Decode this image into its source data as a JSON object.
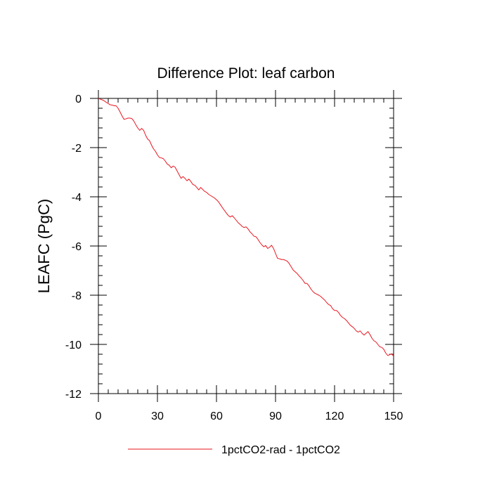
{
  "chart_data": {
    "type": "line",
    "title": "Difference Plot: leaf carbon",
    "xlabel": "",
    "ylabel": "LEAFC  (PgC)",
    "xlim": [
      0,
      150
    ],
    "ylim": [
      -12,
      0
    ],
    "xticks": [
      0,
      30,
      60,
      90,
      120,
      150
    ],
    "yticks": [
      0,
      -2,
      -4,
      -6,
      -8,
      -10,
      -12
    ],
    "x_minor_step": 5,
    "y_minor_step": 0.4,
    "grid": false,
    "legend_position": "bottom-center",
    "series": [
      {
        "name": "1pctCO2-rad - 1pctCO2",
        "color": "#e8141e",
        "x": [
          0,
          1,
          2,
          3,
          4,
          5,
          6,
          7,
          8,
          9,
          10,
          11,
          12,
          13,
          14,
          15,
          16,
          17,
          18,
          19,
          20,
          21,
          22,
          23,
          24,
          25,
          26,
          27,
          28,
          29,
          30,
          31,
          32,
          33,
          34,
          35,
          36,
          37,
          38,
          39,
          40,
          41,
          42,
          43,
          44,
          45,
          46,
          47,
          48,
          49,
          50,
          51,
          52,
          53,
          54,
          55,
          56,
          57,
          58,
          59,
          60,
          61,
          62,
          63,
          64,
          65,
          66,
          67,
          68,
          69,
          70,
          71,
          72,
          73,
          74,
          75,
          76,
          77,
          78,
          79,
          80,
          81,
          82,
          83,
          84,
          85,
          86,
          87,
          88,
          89,
          90,
          91,
          92,
          93,
          94,
          95,
          96,
          97,
          98,
          99,
          100,
          101,
          102,
          103,
          104,
          105,
          106,
          107,
          108,
          109,
          110,
          111,
          112,
          113,
          114,
          115,
          116,
          117,
          118,
          119,
          120,
          121,
          122,
          123,
          124,
          125,
          126,
          127,
          128,
          129,
          130,
          131,
          132,
          133,
          134,
          135,
          136,
          137,
          138,
          139,
          140,
          141,
          142,
          143,
          144,
          145,
          146,
          147,
          148,
          149,
          150
        ],
        "y": [
          0,
          -0.03,
          -0.06,
          -0.1,
          -0.16,
          -0.21,
          -0.26,
          -0.27,
          -0.3,
          -0.3,
          -0.4,
          -0.55,
          -0.71,
          -0.85,
          -0.83,
          -0.8,
          -0.8,
          -0.82,
          -0.92,
          -1.07,
          -1.2,
          -1.3,
          -1.22,
          -1.3,
          -1.5,
          -1.65,
          -1.72,
          -1.9,
          -2.05,
          -2.15,
          -2.3,
          -2.4,
          -2.42,
          -2.45,
          -2.55,
          -2.67,
          -2.72,
          -2.82,
          -2.75,
          -2.8,
          -2.95,
          -3.1,
          -3.25,
          -3.18,
          -3.25,
          -3.35,
          -3.28,
          -3.38,
          -3.5,
          -3.53,
          -3.62,
          -3.72,
          -3.62,
          -3.7,
          -3.78,
          -3.82,
          -3.9,
          -3.95,
          -4.0,
          -4.05,
          -4.12,
          -4.2,
          -4.32,
          -4.44,
          -4.55,
          -4.66,
          -4.76,
          -4.82,
          -4.77,
          -4.85,
          -4.95,
          -5.05,
          -5.12,
          -5.2,
          -5.25,
          -5.22,
          -5.3,
          -5.42,
          -5.5,
          -5.6,
          -5.62,
          -5.72,
          -5.85,
          -5.95,
          -6.03,
          -5.98,
          -6.1,
          -6.05,
          -5.97,
          -6.1,
          -6.3,
          -6.5,
          -6.52,
          -6.55,
          -6.55,
          -6.58,
          -6.62,
          -6.72,
          -6.85,
          -6.98,
          -7.05,
          -7.12,
          -7.22,
          -7.3,
          -7.4,
          -7.52,
          -7.52,
          -7.62,
          -7.75,
          -7.85,
          -7.92,
          -7.96,
          -8.0,
          -8.05,
          -8.13,
          -8.2,
          -8.3,
          -8.38,
          -8.42,
          -8.55,
          -8.62,
          -8.62,
          -8.7,
          -8.82,
          -8.9,
          -8.95,
          -9.02,
          -9.12,
          -9.22,
          -9.28,
          -9.35,
          -9.45,
          -9.5,
          -9.45,
          -9.55,
          -9.62,
          -9.55,
          -9.48,
          -9.6,
          -9.75,
          -9.85,
          -9.9,
          -10.0,
          -10.1,
          -10.12,
          -10.2,
          -10.35,
          -10.45,
          -10.42,
          -10.38,
          -10.48
        ]
      }
    ]
  }
}
